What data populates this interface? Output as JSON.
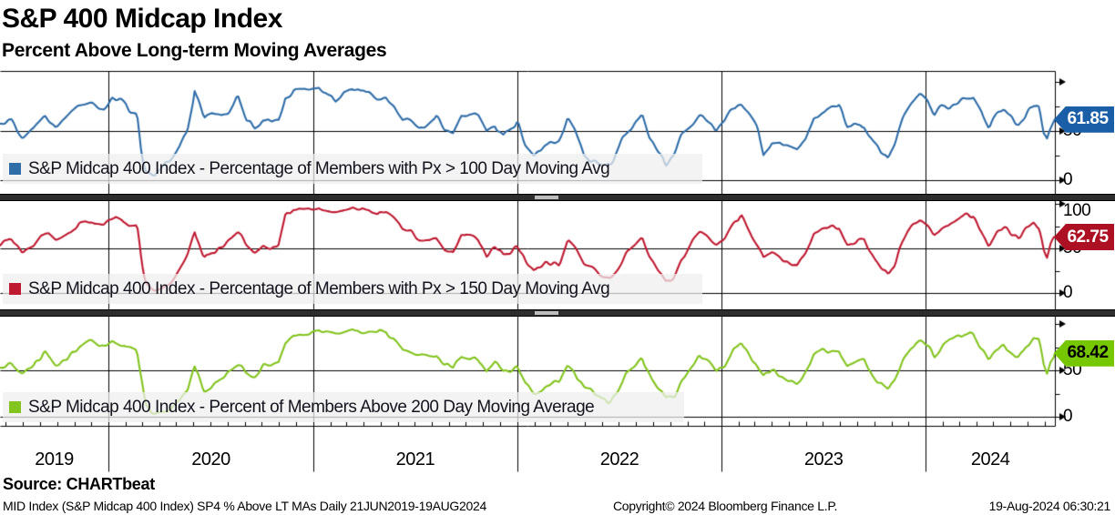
{
  "header": {
    "title": "S&P 400 Midcap Index",
    "subtitle": "Percent Above Long-term Moving Averages"
  },
  "source_line": "Source:  CHARTbeat",
  "footer": {
    "left": "MID Index (S&P Midcap 400 Index) SP4 % Above LT MAs  Daily 21JUN2019-19AUG2024",
    "center": "Copyright© 2024 Bloomberg Finance L.P.",
    "right": "19-Aug-2024 06:30:21"
  },
  "x_axis": {
    "years": [
      "2019",
      "2020",
      "2021",
      "2022",
      "2023",
      "2024"
    ]
  },
  "panels": [
    {
      "legend": "S&P Midcap 400 Index - Percentage of Members with Px > 100 Day Moving Avg",
      "value": "61.85",
      "badge_bg": "#1a5ea8",
      "badge_fg": "#ffffff",
      "tick_50": "50",
      "tick_0": "0"
    },
    {
      "legend": "S&P Midcap 400 Index - Percentage of Members with Px > 150 Day Moving Avg",
      "value": "62.75",
      "badge_bg": "#ad1022",
      "badge_fg": "#ffffff",
      "tick_100": "100",
      "tick_50": "50",
      "tick_0": "0"
    },
    {
      "legend": "S&P Midcap 400 Index - Percent of Members Above 200 Day Moving Average",
      "value": "68.42",
      "badge_bg": "#76c700",
      "badge_fg": "#000000",
      "tick_50": "50",
      "tick_0": "0"
    }
  ],
  "chart_data": {
    "type": "line",
    "title": "S&P 400 Midcap Index",
    "subtitle": "Percent Above Long-term Moving Averages",
    "frequency": "Daily",
    "x_range": [
      "21JUN2019",
      "19AUG2024"
    ],
    "x_total_days": 1886,
    "year_start_days": {
      "2020": 194,
      "2021": 560,
      "2022": 925,
      "2023": 1290,
      "2024": 1655
    },
    "ylim": [
      0,
      100
    ],
    "y_ticks_labeled": [
      0,
      50,
      100
    ],
    "y_ticks_minor": [
      25,
      75
    ],
    "grid": true,
    "legend_position": "bottom-left-of-each-panel",
    "keypoint_days": [
      0,
      20,
      40,
      60,
      80,
      100,
      120,
      140,
      165,
      185,
      200,
      215,
      230,
      245,
      253,
      260,
      275,
      290,
      305,
      320,
      335,
      348,
      355,
      365,
      380,
      395,
      410,
      425,
      440,
      455,
      470,
      485,
      498,
      510,
      525,
      540,
      555,
      570,
      585,
      600,
      615,
      630,
      645,
      660,
      675,
      690,
      705,
      720,
      735,
      750,
      765,
      780,
      795,
      810,
      825,
      840,
      855,
      870,
      885,
      900,
      915,
      925,
      940,
      955,
      970,
      985,
      1000,
      1015,
      1030,
      1045,
      1060,
      1075,
      1090,
      1105,
      1120,
      1135,
      1148,
      1160,
      1175,
      1190,
      1205,
      1220,
      1235,
      1250,
      1265,
      1280,
      1295,
      1310,
      1325,
      1340,
      1355,
      1365,
      1380,
      1395,
      1410,
      1425,
      1440,
      1455,
      1470,
      1485,
      1500,
      1515,
      1530,
      1545,
      1560,
      1575,
      1588,
      1600,
      1615,
      1630,
      1645,
      1658,
      1670,
      1682,
      1695,
      1710,
      1725,
      1740,
      1755,
      1768,
      1782,
      1795,
      1808,
      1822,
      1836,
      1848,
      1858,
      1866,
      1872,
      1878,
      1886
    ],
    "series": [
      {
        "name": "S&P Midcap 400 Index - Percentage of Members with Px > 100 Day Moving Avg",
        "color": "#2f6da8",
        "last_value": 61.85,
        "values": [
          58,
          62,
          42,
          52,
          68,
          55,
          65,
          76,
          80,
          74,
          84,
          77,
          72,
          70,
          28,
          8,
          3,
          10,
          18,
          30,
          50,
          93,
          85,
          62,
          65,
          66,
          72,
          83,
          60,
          52,
          60,
          55,
          60,
          86,
          91,
          89,
          91,
          94,
          89,
          85,
          92,
          94,
          90,
          91,
          86,
          86,
          76,
          64,
          64,
          57,
          60,
          62,
          48,
          45,
          66,
          69,
          66,
          48,
          58,
          48,
          55,
          60,
          32,
          20,
          30,
          34,
          36,
          60,
          48,
          26,
          24,
          15,
          12,
          28,
          50,
          60,
          70,
          48,
          28,
          12,
          22,
          45,
          58,
          70,
          62,
          52,
          58,
          75,
          80,
          66,
          50,
          25,
          38,
          38,
          34,
          30,
          45,
          65,
          72,
          74,
          75,
          55,
          55,
          55,
          42,
          30,
          20,
          35,
          65,
          78,
          85,
          78,
          63,
          74,
          76,
          80,
          84,
          85,
          70,
          52,
          64,
          70,
          62,
          56,
          70,
          78,
          74,
          48,
          40,
          52,
          61.85
        ]
      },
      {
        "name": "S&P Midcap 400 Index - Percentage of Members with Px > 150 Day Moving Avg",
        "color": "#bf1a32",
        "last_value": 62.75,
        "values": [
          55,
          60,
          45,
          50,
          66,
          56,
          64,
          75,
          79,
          75,
          83,
          78,
          73,
          72,
          35,
          12,
          3,
          7,
          12,
          22,
          38,
          65,
          55,
          35,
          42,
          46,
          55,
          66,
          52,
          46,
          54,
          50,
          56,
          85,
          93,
          91,
          93,
          96,
          92,
          88,
          94,
          96,
          93,
          93,
          89,
          89,
          80,
          70,
          68,
          62,
          63,
          62,
          50,
          48,
          64,
          67,
          63,
          46,
          54,
          46,
          51,
          56,
          35,
          25,
          32,
          36,
          36,
          56,
          46,
          28,
          26,
          18,
          15,
          26,
          46,
          56,
          66,
          46,
          30,
          15,
          20,
          42,
          56,
          68,
          60,
          50,
          56,
          73,
          85,
          70,
          54,
          42,
          46,
          43,
          38,
          35,
          48,
          63,
          70,
          72,
          74,
          58,
          57,
          57,
          45,
          34,
          24,
          36,
          62,
          76,
          84,
          79,
          65,
          73,
          75,
          80,
          85,
          86,
          72,
          55,
          66,
          72,
          64,
          58,
          71,
          79,
          76,
          50,
          43,
          54,
          62.75
        ]
      },
      {
        "name": "S&P Midcap 400 Index - Percent of Members Above 200 Day Moving Average",
        "color": "#83c41e",
        "last_value": 68.42,
        "values": [
          56,
          60,
          46,
          52,
          66,
          57,
          64,
          74,
          78,
          74,
          82,
          77,
          73,
          72,
          42,
          16,
          4,
          6,
          10,
          18,
          28,
          55,
          48,
          28,
          35,
          42,
          48,
          56,
          50,
          46,
          56,
          52,
          58,
          80,
          89,
          90,
          92,
          94,
          91,
          88,
          93,
          95,
          92,
          92,
          89,
          90,
          84,
          75,
          72,
          66,
          66,
          66,
          56,
          52,
          66,
          68,
          65,
          48,
          56,
          48,
          52,
          58,
          36,
          26,
          33,
          37,
          37,
          57,
          47,
          30,
          27,
          19,
          16,
          27,
          47,
          57,
          66,
          47,
          31,
          16,
          21,
          43,
          57,
          69,
          61,
          51,
          57,
          73,
          84,
          70,
          55,
          44,
          48,
          45,
          40,
          37,
          50,
          64,
          71,
          73,
          75,
          60,
          59,
          59,
          47,
          36,
          26,
          38,
          63,
          77,
          85,
          81,
          68,
          76,
          78,
          83,
          87,
          88,
          76,
          60,
          70,
          76,
          68,
          63,
          75,
          83,
          81,
          55,
          48,
          60,
          68.42
        ]
      }
    ]
  }
}
